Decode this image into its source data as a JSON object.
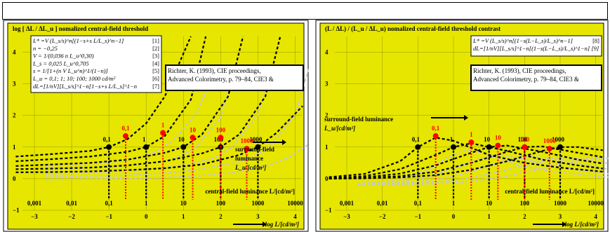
{
  "page": {
    "id": "fea50−3n"
  },
  "colors": {
    "panel_bg": "#e6e600",
    "threshold_curve": "#000000",
    "surround_marker": "#000000",
    "central_marker": "#ff0000",
    "faint_curve": "#c8c8c8"
  },
  "chart_data": [
    {
      "type": "line",
      "title": "log [ ΔL / ΔL_u ]  nomalized central-field threshold",
      "formulas": [
        [
          "L* =V (L_s/s)^n[(1−s+s L/L_s)^n−1]",
          "[1]"
        ],
        [
          "n = −0,25",
          "[2]"
        ],
        [
          "V = 1/(0,036 n L_u^0,30)",
          "[3]"
        ],
        [
          "L_s = 0,025 L_u^0,705",
          "[4]"
        ],
        [
          "s = 1/[1+(n V L_u^n)^1/(1−n)]",
          "[5]"
        ],
        [
          "L_u = 0,1; 1; 10; 100; 1000 cd/m²",
          "[6]"
        ],
        [
          "dL=[1/nV][L_s/s]^1−n[1−s+s L/L_s]^1−n",
          "[7]"
        ]
      ],
      "reference": [
        "Richter, K. (1993), CIE proceedings,",
        "Advanced Colorimetry, p. 79–84, CIE3 &"
      ],
      "xlabel": "log L/[cd/m²]",
      "x_ticks": [
        -3,
        -2,
        -1,
        0,
        1,
        2,
        3,
        4
      ],
      "x_ticks_text": [
        "−3",
        "−2",
        "−1",
        "0",
        "1",
        "2",
        "3",
        "4"
      ],
      "luminance_ticks": [
        "0,001",
        "0,01",
        "0,1",
        "1",
        "10",
        "100",
        "1000",
        "10000"
      ],
      "central_label": "central-field luminance L/[cd/m²]",
      "ylim": [
        -1,
        4.5
      ],
      "y_ticks": [
        -1,
        0,
        1,
        2,
        3,
        4
      ],
      "y_ticks_text": [
        "−1",
        "0",
        "1",
        "2",
        "3",
        "4"
      ],
      "surround_label": [
        "surround-field",
        "luminance",
        "L_u/[cd/m²]"
      ],
      "surround_points": [
        {
          "x": -1,
          "y": 1,
          "label": "0,1"
        },
        {
          "x": 0,
          "y": 1,
          "label": "1"
        },
        {
          "x": 1,
          "y": 1,
          "label": "10"
        },
        {
          "x": 2,
          "y": 1,
          "label": "100"
        },
        {
          "x": 3,
          "y": 1,
          "label": "1000"
        }
      ],
      "central_points": [
        {
          "x": -0.55,
          "y": 1.35,
          "label": "0,1"
        },
        {
          "x": 0.45,
          "y": 1.45,
          "label": "1"
        },
        {
          "x": 1.25,
          "y": 1.3,
          "label": "10"
        },
        {
          "x": 2.0,
          "y": 1.3,
          "label": "100"
        },
        {
          "x": 2.7,
          "y": 0.95,
          "label": "1000"
        }
      ],
      "series": [
        {
          "name": "0,1",
          "x": [
            -3.5,
            -2.5,
            -1.5,
            -1,
            -0.5,
            0,
            0.5,
            1.2
          ],
          "y": [
            0.7,
            0.78,
            0.88,
            1.0,
            1.25,
            1.75,
            2.6,
            4.5
          ]
        },
        {
          "name": "1",
          "x": [
            -3.5,
            -2.5,
            -1.5,
            -0.5,
            0,
            0.5,
            1.2,
            1.6
          ],
          "y": [
            0.55,
            0.62,
            0.7,
            0.85,
            1.0,
            1.35,
            2.5,
            4.5
          ]
        },
        {
          "name": "10",
          "x": [
            -3.5,
            -2.5,
            -1.5,
            -0.5,
            0.5,
            1,
            1.5,
            2.2,
            2.6
          ],
          "y": [
            0.4,
            0.45,
            0.5,
            0.6,
            0.82,
            1.0,
            1.4,
            2.6,
            4.5
          ]
        },
        {
          "name": "100",
          "x": [
            -3.5,
            -2.5,
            -1.5,
            -0.5,
            0.5,
            1.5,
            2,
            2.5,
            3.2,
            3.6
          ],
          "y": [
            0.3,
            0.32,
            0.35,
            0.42,
            0.55,
            0.8,
            1.0,
            1.4,
            2.6,
            4.5
          ]
        },
        {
          "name": "1000",
          "x": [
            -3.5,
            -2.5,
            -1.5,
            -0.5,
            0.5,
            1.5,
            2.5,
            3,
            3.5,
            4.2
          ],
          "y": [
            0.2,
            0.21,
            0.23,
            0.27,
            0.33,
            0.45,
            0.75,
            1.0,
            1.45,
            2.3
          ]
        }
      ]
    },
    {
      "type": "line",
      "title": "(L / ΔL) / (L_u / ΔL_u)  nomalized central-field threshold contrast",
      "formulas": [
        [
          "L* =V (L_s/s)^n[(1−s(L−L_s)/L_s)^n−1]",
          "[8]"
        ],
        [
          "dL=[1/nV][L_s/s]^1−n[(1−s(L−L_s)/L_s)^1−n] [9]",
          ""
        ]
      ],
      "reference": [
        "Richter, K. (1993), CIE proceedings,",
        "Advanced Colorimetry, p. 79–84, CIE3 &"
      ],
      "xlabel": "log L/[cd/m²]",
      "x_ticks": [
        -3,
        -2,
        -1,
        0,
        1,
        2,
        3,
        4
      ],
      "x_ticks_text": [
        "−3",
        "−2",
        "−1",
        "0",
        "1",
        "2",
        "3",
        "4"
      ],
      "luminance_ticks": [
        "0,001",
        "0,01",
        "0,1",
        "1",
        "10",
        "100",
        "1000",
        "10000"
      ],
      "central_label": "central-field luminance L/[cd/m²]",
      "ylim": [
        -1,
        4.5
      ],
      "y_ticks": [
        -1,
        0,
        1,
        2,
        3,
        4
      ],
      "y_ticks_text": [
        "−1",
        "0",
        "1",
        "2",
        "3",
        "4"
      ],
      "surround_label": [
        "surround-field luminance",
        "L_u/[cd/m²]"
      ],
      "surround_points": [
        {
          "x": -1,
          "y": 1,
          "label": "0,1"
        },
        {
          "x": 0,
          "y": 1,
          "label": "1"
        },
        {
          "x": 1,
          "y": 1,
          "label": "10"
        },
        {
          "x": 2,
          "y": 1,
          "label": "100"
        },
        {
          "x": 3,
          "y": 1,
          "label": "1000"
        }
      ],
      "central_points": [
        {
          "x": -0.5,
          "y": 1.35,
          "label": "0,1"
        },
        {
          "x": 0.5,
          "y": 1.15,
          "label": "1"
        },
        {
          "x": 1.25,
          "y": 1.05,
          "label": "10"
        },
        {
          "x": 2.0,
          "y": 1.0,
          "label": "100"
        },
        {
          "x": 2.7,
          "y": 0.95,
          "label": "1000"
        }
      ],
      "series": [
        {
          "name": "0,1",
          "x": [
            -3.5,
            -2.5,
            -1.5,
            -1,
            -0.5,
            0,
            1,
            2,
            3,
            4.2
          ],
          "y": [
            0.05,
            0.15,
            0.55,
            1.0,
            1.3,
            1.2,
            0.75,
            0.5,
            0.35,
            0.22
          ]
        },
        {
          "name": "1",
          "x": [
            -3.5,
            -2.5,
            -1.5,
            -0.5,
            0,
            0.5,
            1.5,
            2.5,
            3.5,
            4.2
          ],
          "y": [
            0.02,
            0.08,
            0.3,
            0.75,
            1.0,
            1.12,
            0.88,
            0.6,
            0.42,
            0.32
          ]
        },
        {
          "name": "10",
          "x": [
            -3.5,
            -2.5,
            -1.5,
            -0.5,
            0.5,
            1,
            1.5,
            2.5,
            3.5,
            4.2
          ],
          "y": [
            0.0,
            0.04,
            0.16,
            0.42,
            0.82,
            1.0,
            1.05,
            0.85,
            0.6,
            0.48
          ]
        },
        {
          "name": "100",
          "x": [
            -3.5,
            -2.5,
            -1.5,
            -0.5,
            0.5,
            1.5,
            2,
            2.5,
            3.5,
            4.2
          ],
          "y": [
            0.0,
            0.02,
            0.08,
            0.22,
            0.5,
            0.85,
            1.0,
            1.02,
            0.82,
            0.68
          ]
        },
        {
          "name": "1000",
          "x": [
            -3.5,
            -2.5,
            -1.5,
            -0.5,
            0.5,
            1.5,
            2.5,
            3,
            3.5,
            4.2
          ],
          "y": [
            0.0,
            0.01,
            0.04,
            0.11,
            0.28,
            0.55,
            0.88,
            1.0,
            1.0,
            0.9
          ]
        }
      ]
    }
  ]
}
